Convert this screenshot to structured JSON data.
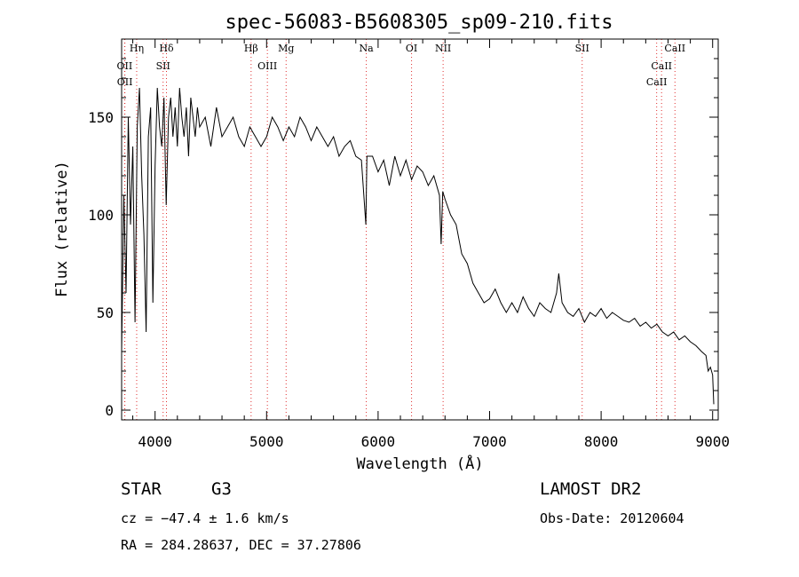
{
  "chart_data": {
    "type": "line",
    "title": "spec-56083-B5608305_sp09-210.fits",
    "xlabel": "Wavelength (Å)",
    "ylabel": "Flux (relative)",
    "xlim": [
      3700,
      9050
    ],
    "ylim": [
      -5,
      190
    ],
    "xticks": [
      4000,
      5000,
      6000,
      7000,
      8000,
      9000
    ],
    "yticks": [
      0,
      50,
      100,
      150
    ],
    "grid": false,
    "line_color": "#000000",
    "marker_color": "#e03030",
    "x": [
      3700,
      3720,
      3740,
      3760,
      3780,
      3800,
      3820,
      3840,
      3860,
      3880,
      3900,
      3920,
      3940,
      3960,
      3980,
      4000,
      4020,
      4040,
      4060,
      4080,
      4100,
      4120,
      4140,
      4160,
      4180,
      4200,
      4220,
      4240,
      4260,
      4280,
      4300,
      4320,
      4340,
      4360,
      4380,
      4400,
      4450,
      4500,
      4550,
      4600,
      4650,
      4700,
      4750,
      4800,
      4850,
      4900,
      4950,
      5000,
      5050,
      5100,
      5150,
      5200,
      5250,
      5300,
      5350,
      5400,
      5450,
      5500,
      5550,
      5600,
      5650,
      5700,
      5750,
      5800,
      5850,
      5890,
      5900,
      5950,
      6000,
      6050,
      6100,
      6150,
      6200,
      6250,
      6300,
      6350,
      6400,
      6450,
      6500,
      6550,
      6565,
      6580,
      6600,
      6650,
      6700,
      6750,
      6800,
      6850,
      6900,
      6950,
      7000,
      7050,
      7100,
      7150,
      7200,
      7250,
      7300,
      7350,
      7400,
      7450,
      7500,
      7550,
      7600,
      7620,
      7650,
      7700,
      7750,
      7800,
      7850,
      7900,
      7950,
      8000,
      8050,
      8100,
      8150,
      8200,
      8250,
      8300,
      8350,
      8400,
      8450,
      8500,
      8550,
      8600,
      8650,
      8700,
      8750,
      8800,
      8850,
      8900,
      8940,
      8960,
      8980,
      9000,
      9010
    ],
    "y": [
      30,
      110,
      60,
      150,
      95,
      135,
      45,
      145,
      165,
      120,
      90,
      40,
      140,
      155,
      55,
      125,
      165,
      145,
      135,
      160,
      105,
      150,
      160,
      140,
      155,
      135,
      165,
      150,
      140,
      155,
      130,
      160,
      150,
      140,
      155,
      145,
      150,
      135,
      155,
      140,
      145,
      150,
      140,
      135,
      145,
      140,
      135,
      140,
      150,
      145,
      138,
      145,
      140,
      150,
      145,
      138,
      145,
      140,
      135,
      140,
      130,
      135,
      138,
      130,
      128,
      95,
      130,
      130,
      122,
      128,
      115,
      130,
      120,
      128,
      118,
      125,
      122,
      115,
      120,
      110,
      85,
      112,
      108,
      100,
      95,
      80,
      75,
      65,
      60,
      55,
      57,
      62,
      55,
      50,
      55,
      50,
      58,
      52,
      48,
      55,
      52,
      50,
      60,
      70,
      55,
      50,
      48,
      52,
      45,
      50,
      48,
      52,
      47,
      50,
      48,
      46,
      45,
      47,
      43,
      45,
      42,
      44,
      40,
      38,
      40,
      36,
      38,
      35,
      33,
      30,
      28,
      20,
      22,
      18,
      3
    ],
    "lines": [
      {
        "label": "Hη",
        "wavelength": 3835
      },
      {
        "label": "OII",
        "wavelength": 3727
      },
      {
        "label": "OII",
        "wavelength": 3729
      },
      {
        "label": "Hδ",
        "wavelength": 4102
      },
      {
        "label": "SII",
        "wavelength": 4072
      },
      {
        "label": "Hβ",
        "wavelength": 4861
      },
      {
        "label": "OIII",
        "wavelength": 5007
      },
      {
        "label": "Mg",
        "wavelength": 5175
      },
      {
        "label": "Na",
        "wavelength": 5894
      },
      {
        "label": "OI",
        "wavelength": 6300
      },
      {
        "label": "NII",
        "wavelength": 6583
      },
      {
        "label": "SII",
        "wavelength": 7830
      },
      {
        "label": "CaII",
        "wavelength": 8662
      },
      {
        "label": "CaII",
        "wavelength": 8542
      },
      {
        "label": "CaII",
        "wavelength": 8498
      }
    ]
  },
  "info": {
    "class": "STAR",
    "subclass": "G3",
    "survey": "LAMOST DR2",
    "cz": "cz = −47.4 ± 1.6 km/s",
    "obs_date": "Obs-Date: 20120604",
    "coords": "RA = 284.28637, DEC =  37.27806"
  }
}
